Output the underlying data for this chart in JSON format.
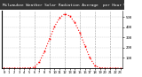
{
  "hours": [
    0,
    1,
    2,
    3,
    4,
    5,
    6,
    7,
    8,
    9,
    10,
    11,
    12,
    13,
    14,
    15,
    16,
    17,
    18,
    19,
    20,
    21,
    22,
    23
  ],
  "values": [
    0,
    0,
    0,
    0,
    0,
    2,
    8,
    60,
    160,
    285,
    405,
    490,
    530,
    510,
    445,
    345,
    220,
    100,
    22,
    3,
    0,
    0,
    0,
    0
  ],
  "line_color": "#ff0000",
  "bg_color": "#ffffff",
  "header_bg": "#333333",
  "title": "Milwaukee Weather Solar Radiation Average  per Hour W/m2  (24 Hours)",
  "title_color": "#ffffff",
  "title_fontsize": 3.2,
  "grid_color": "#999999",
  "grid_positions": [
    3,
    6,
    9,
    12,
    15,
    18,
    21
  ],
  "ylabel_right_values": [
    100,
    200,
    300,
    400,
    500
  ],
  "ylim": [
    0,
    560
  ],
  "xlim": [
    -0.5,
    23.5
  ],
  "tick_fontsize": 2.8
}
